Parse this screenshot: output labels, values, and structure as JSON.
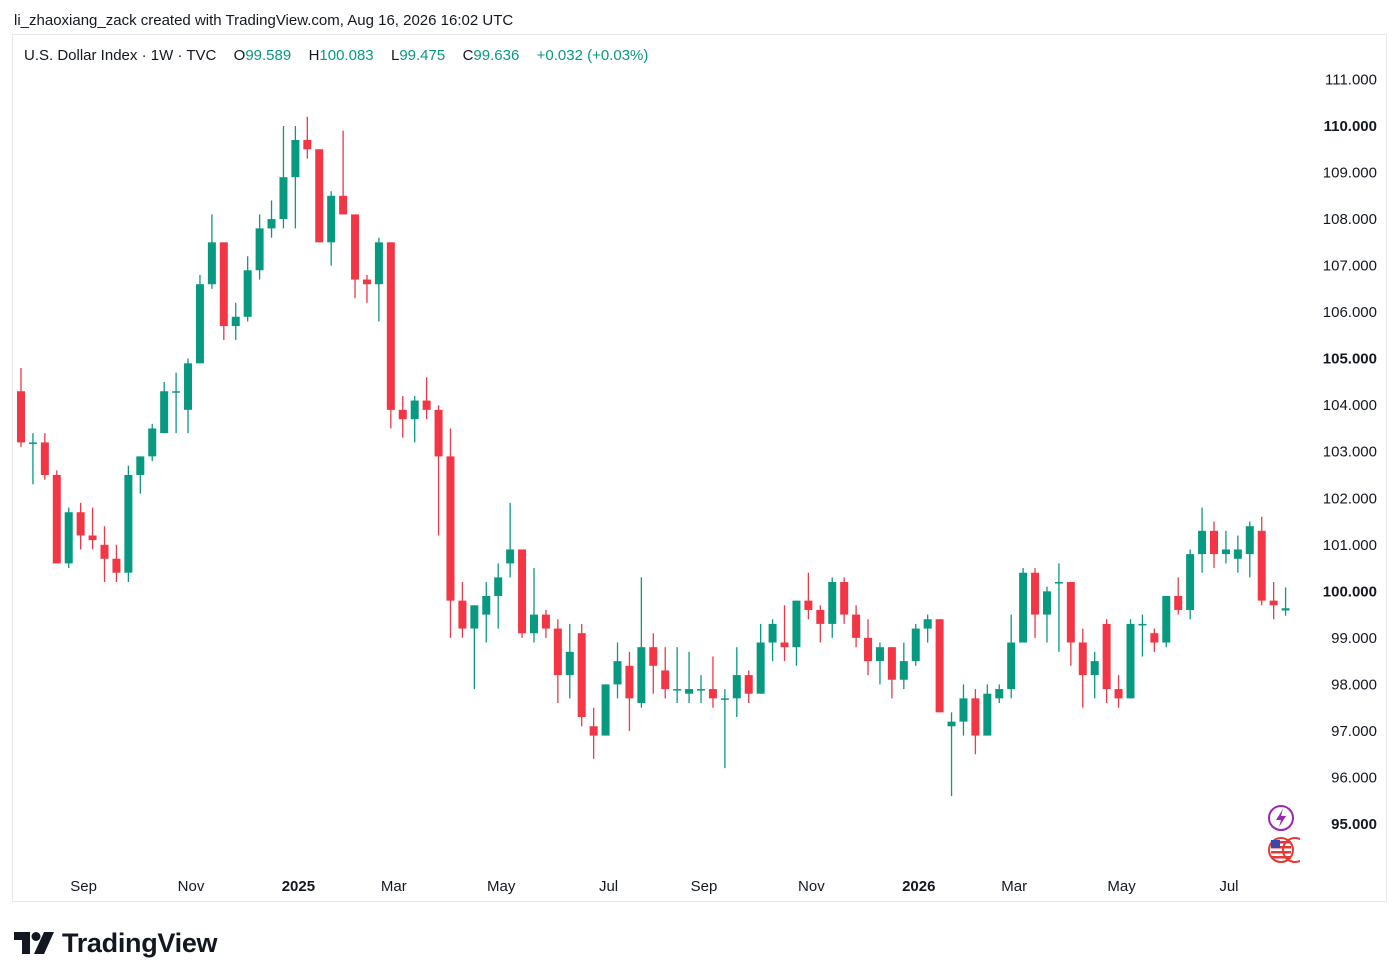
{
  "attribution": "li_zhaoxiang_zack created with TradingView.com, Aug 16, 2026 16:02 UTC",
  "legend": {
    "symbol": "U.S. Dollar Index",
    "interval": "1W",
    "exchange": "TVC",
    "open_label": "O",
    "open": "99.589",
    "high_label": "H",
    "high": "100.083",
    "low_label": "L",
    "low": "99.475",
    "close_label": "C",
    "close": "99.636",
    "change": "+0.032 (+0.03%)"
  },
  "logo_text": "TradingView",
  "colors": {
    "up": "#089981",
    "down": "#f23645",
    "text": "#131722",
    "legend_value": "#089981"
  },
  "icons": [
    "lightning-event-icon",
    "us-flag-icon"
  ],
  "chart_data": {
    "type": "candlestick",
    "ylim": [
      94.0,
      111.5
    ],
    "y_ticks": [
      {
        "value": 111,
        "label": "111.000",
        "bold": false
      },
      {
        "value": 110,
        "label": "110.000",
        "bold": true
      },
      {
        "value": 109,
        "label": "109.000",
        "bold": false
      },
      {
        "value": 108,
        "label": "108.000",
        "bold": false
      },
      {
        "value": 107,
        "label": "107.000",
        "bold": false
      },
      {
        "value": 106,
        "label": "106.000",
        "bold": false
      },
      {
        "value": 105,
        "label": "105.000",
        "bold": true
      },
      {
        "value": 104,
        "label": "104.000",
        "bold": false
      },
      {
        "value": 103,
        "label": "103.000",
        "bold": false
      },
      {
        "value": 102,
        "label": "102.000",
        "bold": false
      },
      {
        "value": 101,
        "label": "101.000",
        "bold": false
      },
      {
        "value": 100,
        "label": "100.000",
        "bold": true
      },
      {
        "value": 99,
        "label": "99.000",
        "bold": false
      },
      {
        "value": 98,
        "label": "98.000",
        "bold": false
      },
      {
        "value": 97,
        "label": "97.000",
        "bold": false
      },
      {
        "value": 96,
        "label": "96.000",
        "bold": false
      },
      {
        "value": 95,
        "label": "95.000",
        "bold": true
      }
    ],
    "x_ticks": [
      {
        "label": "Sep",
        "index": 5,
        "bold": false
      },
      {
        "label": "Nov",
        "index": 14,
        "bold": false
      },
      {
        "label": "2025",
        "index": 23,
        "bold": true
      },
      {
        "label": "Mar",
        "index": 31,
        "bold": false
      },
      {
        "label": "May",
        "index": 40,
        "bold": false
      },
      {
        "label": "Jul",
        "index": 49,
        "bold": false
      },
      {
        "label": "Sep",
        "index": 57,
        "bold": false
      },
      {
        "label": "Nov",
        "index": 66,
        "bold": false
      },
      {
        "label": "2026",
        "index": 75,
        "bold": true
      },
      {
        "label": "Mar",
        "index": 83,
        "bold": false
      },
      {
        "label": "May",
        "index": 92,
        "bold": false
      },
      {
        "label": "Jul",
        "index": 101,
        "bold": false
      }
    ],
    "candles": [
      {
        "o": 104.3,
        "h": 104.8,
        "l": 103.1,
        "c": 103.2
      },
      {
        "o": 103.2,
        "h": 103.4,
        "l": 102.3,
        "c": 103.2
      },
      {
        "o": 103.2,
        "h": 103.4,
        "l": 102.4,
        "c": 102.5
      },
      {
        "o": 102.5,
        "h": 102.6,
        "l": 100.6,
        "c": 100.6
      },
      {
        "o": 100.6,
        "h": 101.8,
        "l": 100.5,
        "c": 101.7
      },
      {
        "o": 101.7,
        "h": 101.9,
        "l": 100.9,
        "c": 101.2
      },
      {
        "o": 101.2,
        "h": 101.8,
        "l": 100.9,
        "c": 101.1
      },
      {
        "o": 101.0,
        "h": 101.4,
        "l": 100.2,
        "c": 100.7
      },
      {
        "o": 100.7,
        "h": 101.0,
        "l": 100.2,
        "c": 100.4
      },
      {
        "o": 100.4,
        "h": 102.7,
        "l": 100.2,
        "c": 102.5
      },
      {
        "o": 102.5,
        "h": 102.9,
        "l": 102.1,
        "c": 102.9
      },
      {
        "o": 102.9,
        "h": 103.6,
        "l": 102.8,
        "c": 103.5
      },
      {
        "o": 103.4,
        "h": 104.5,
        "l": 103.4,
        "c": 104.3
      },
      {
        "o": 104.3,
        "h": 104.7,
        "l": 103.4,
        "c": 104.3
      },
      {
        "o": 103.9,
        "h": 105.0,
        "l": 103.4,
        "c": 104.9
      },
      {
        "o": 104.9,
        "h": 106.8,
        "l": 104.9,
        "c": 106.6
      },
      {
        "o": 106.6,
        "h": 108.1,
        "l": 106.5,
        "c": 107.5
      },
      {
        "o": 107.5,
        "h": 107.5,
        "l": 105.4,
        "c": 105.7
      },
      {
        "o": 105.7,
        "h": 106.2,
        "l": 105.4,
        "c": 105.9
      },
      {
        "o": 105.9,
        "h": 107.2,
        "l": 105.8,
        "c": 106.9
      },
      {
        "o": 106.9,
        "h": 108.1,
        "l": 106.7,
        "c": 107.8
      },
      {
        "o": 107.8,
        "h": 108.4,
        "l": 107.6,
        "c": 108.0
      },
      {
        "o": 108.0,
        "h": 110.0,
        "l": 107.8,
        "c": 108.9
      },
      {
        "o": 108.9,
        "h": 110.0,
        "l": 107.8,
        "c": 109.7
      },
      {
        "o": 109.7,
        "h": 110.2,
        "l": 109.3,
        "c": 109.5
      },
      {
        "o": 109.5,
        "h": 109.5,
        "l": 107.5,
        "c": 107.5
      },
      {
        "o": 107.5,
        "h": 108.6,
        "l": 107.0,
        "c": 108.5
      },
      {
        "o": 108.5,
        "h": 109.9,
        "l": 108.1,
        "c": 108.1
      },
      {
        "o": 108.1,
        "h": 108.1,
        "l": 106.3,
        "c": 106.7
      },
      {
        "o": 106.7,
        "h": 106.8,
        "l": 106.2,
        "c": 106.6
      },
      {
        "o": 106.6,
        "h": 107.6,
        "l": 105.8,
        "c": 107.5
      },
      {
        "o": 107.5,
        "h": 107.5,
        "l": 103.5,
        "c": 103.9
      },
      {
        "o": 103.9,
        "h": 104.2,
        "l": 103.3,
        "c": 103.7
      },
      {
        "o": 103.7,
        "h": 104.2,
        "l": 103.2,
        "c": 104.1
      },
      {
        "o": 104.1,
        "h": 104.6,
        "l": 103.7,
        "c": 103.9
      },
      {
        "o": 103.9,
        "h": 104.0,
        "l": 101.2,
        "c": 102.9
      },
      {
        "o": 102.9,
        "h": 103.5,
        "l": 99.0,
        "c": 99.8
      },
      {
        "o": 99.8,
        "h": 100.2,
        "l": 99.0,
        "c": 99.2
      },
      {
        "o": 99.2,
        "h": 99.7,
        "l": 97.9,
        "c": 99.7
      },
      {
        "o": 99.5,
        "h": 100.2,
        "l": 98.9,
        "c": 99.9
      },
      {
        "o": 99.9,
        "h": 100.6,
        "l": 99.2,
        "c": 100.3
      },
      {
        "o": 100.6,
        "h": 101.9,
        "l": 100.3,
        "c": 100.9
      },
      {
        "o": 100.9,
        "h": 100.9,
        "l": 99.0,
        "c": 99.1
      },
      {
        "o": 99.1,
        "h": 100.5,
        "l": 98.9,
        "c": 99.5
      },
      {
        "o": 99.5,
        "h": 99.6,
        "l": 99.0,
        "c": 99.2
      },
      {
        "o": 99.2,
        "h": 99.4,
        "l": 97.6,
        "c": 98.2
      },
      {
        "o": 98.2,
        "h": 99.3,
        "l": 97.7,
        "c": 98.7
      },
      {
        "o": 99.1,
        "h": 99.3,
        "l": 97.1,
        "c": 97.3
      },
      {
        "o": 97.1,
        "h": 97.5,
        "l": 96.4,
        "c": 96.9
      },
      {
        "o": 96.9,
        "h": 98.0,
        "l": 96.9,
        "c": 98.0
      },
      {
        "o": 98.0,
        "h": 98.9,
        "l": 97.7,
        "c": 98.5
      },
      {
        "o": 98.4,
        "h": 98.7,
        "l": 97.0,
        "c": 97.7
      },
      {
        "o": 97.6,
        "h": 100.3,
        "l": 97.5,
        "c": 98.8
      },
      {
        "o": 98.8,
        "h": 99.1,
        "l": 97.8,
        "c": 98.4
      },
      {
        "o": 98.3,
        "h": 98.8,
        "l": 97.7,
        "c": 97.9
      },
      {
        "o": 97.9,
        "h": 98.8,
        "l": 97.6,
        "c": 97.9
      },
      {
        "o": 97.8,
        "h": 98.7,
        "l": 97.6,
        "c": 97.9
      },
      {
        "o": 97.9,
        "h": 98.2,
        "l": 97.6,
        "c": 97.9
      },
      {
        "o": 97.9,
        "h": 98.6,
        "l": 97.5,
        "c": 97.7
      },
      {
        "o": 97.7,
        "h": 97.9,
        "l": 96.2,
        "c": 97.7
      },
      {
        "o": 97.7,
        "h": 98.8,
        "l": 97.3,
        "c": 98.2
      },
      {
        "o": 98.2,
        "h": 98.3,
        "l": 97.6,
        "c": 97.8
      },
      {
        "o": 97.8,
        "h": 99.3,
        "l": 97.8,
        "c": 98.9
      },
      {
        "o": 98.9,
        "h": 99.4,
        "l": 98.5,
        "c": 99.3
      },
      {
        "o": 98.9,
        "h": 99.7,
        "l": 98.5,
        "c": 98.8
      },
      {
        "o": 98.8,
        "h": 99.8,
        "l": 98.4,
        "c": 99.8
      },
      {
        "o": 99.8,
        "h": 100.4,
        "l": 99.4,
        "c": 99.6
      },
      {
        "o": 99.6,
        "h": 99.7,
        "l": 98.9,
        "c": 99.3
      },
      {
        "o": 99.3,
        "h": 100.3,
        "l": 99.0,
        "c": 100.2
      },
      {
        "o": 100.2,
        "h": 100.3,
        "l": 99.3,
        "c": 99.5
      },
      {
        "o": 99.5,
        "h": 99.7,
        "l": 98.8,
        "c": 99.0
      },
      {
        "o": 99.0,
        "h": 99.4,
        "l": 98.2,
        "c": 98.5
      },
      {
        "o": 98.5,
        "h": 98.9,
        "l": 98.0,
        "c": 98.8
      },
      {
        "o": 98.8,
        "h": 98.8,
        "l": 97.7,
        "c": 98.1
      },
      {
        "o": 98.1,
        "h": 98.9,
        "l": 97.9,
        "c": 98.5
      },
      {
        "o": 98.5,
        "h": 99.3,
        "l": 98.4,
        "c": 99.2
      },
      {
        "o": 99.2,
        "h": 99.5,
        "l": 98.9,
        "c": 99.4
      },
      {
        "o": 99.4,
        "h": 99.4,
        "l": 97.4,
        "c": 97.4
      },
      {
        "o": 97.1,
        "h": 97.4,
        "l": 95.6,
        "c": 97.2
      },
      {
        "o": 97.2,
        "h": 98.0,
        "l": 96.9,
        "c": 97.7
      },
      {
        "o": 97.7,
        "h": 97.9,
        "l": 96.5,
        "c": 96.9
      },
      {
        "o": 96.9,
        "h": 98.0,
        "l": 96.9,
        "c": 97.8
      },
      {
        "o": 97.7,
        "h": 98.0,
        "l": 97.6,
        "c": 97.9
      },
      {
        "o": 97.9,
        "h": 99.5,
        "l": 97.7,
        "c": 98.9
      },
      {
        "o": 98.9,
        "h": 100.5,
        "l": 98.9,
        "c": 100.4
      },
      {
        "o": 100.4,
        "h": 100.5,
        "l": 99.0,
        "c": 99.5
      },
      {
        "o": 99.5,
        "h": 100.1,
        "l": 98.9,
        "c": 100.0
      },
      {
        "o": 100.2,
        "h": 100.6,
        "l": 98.7,
        "c": 100.2
      },
      {
        "o": 100.2,
        "h": 100.2,
        "l": 98.4,
        "c": 98.9
      },
      {
        "o": 98.9,
        "h": 99.2,
        "l": 97.5,
        "c": 98.2
      },
      {
        "o": 98.2,
        "h": 98.7,
        "l": 97.7,
        "c": 98.5
      },
      {
        "o": 99.3,
        "h": 99.4,
        "l": 97.6,
        "c": 97.9
      },
      {
        "o": 97.9,
        "h": 98.2,
        "l": 97.5,
        "c": 97.7
      },
      {
        "o": 97.7,
        "h": 99.4,
        "l": 97.7,
        "c": 99.3
      },
      {
        "o": 99.3,
        "h": 99.5,
        "l": 98.6,
        "c": 99.3
      },
      {
        "o": 99.1,
        "h": 99.2,
        "l": 98.7,
        "c": 98.9
      },
      {
        "o": 98.9,
        "h": 99.9,
        "l": 98.8,
        "c": 99.9
      },
      {
        "o": 99.9,
        "h": 100.3,
        "l": 99.5,
        "c": 99.6
      },
      {
        "o": 99.6,
        "h": 100.9,
        "l": 99.4,
        "c": 100.8
      },
      {
        "o": 100.8,
        "h": 101.8,
        "l": 100.4,
        "c": 101.3
      },
      {
        "o": 101.3,
        "h": 101.5,
        "l": 100.5,
        "c": 100.8
      },
      {
        "o": 100.8,
        "h": 101.3,
        "l": 100.6,
        "c": 100.9
      },
      {
        "o": 100.7,
        "h": 101.2,
        "l": 100.4,
        "c": 100.9
      },
      {
        "o": 100.8,
        "h": 101.5,
        "l": 100.3,
        "c": 101.4
      },
      {
        "o": 101.3,
        "h": 101.6,
        "l": 99.7,
        "c": 99.8
      },
      {
        "o": 99.8,
        "h": 100.2,
        "l": 99.4,
        "c": 99.7
      },
      {
        "o": 99.589,
        "h": 100.083,
        "l": 99.475,
        "c": 99.636
      }
    ]
  }
}
